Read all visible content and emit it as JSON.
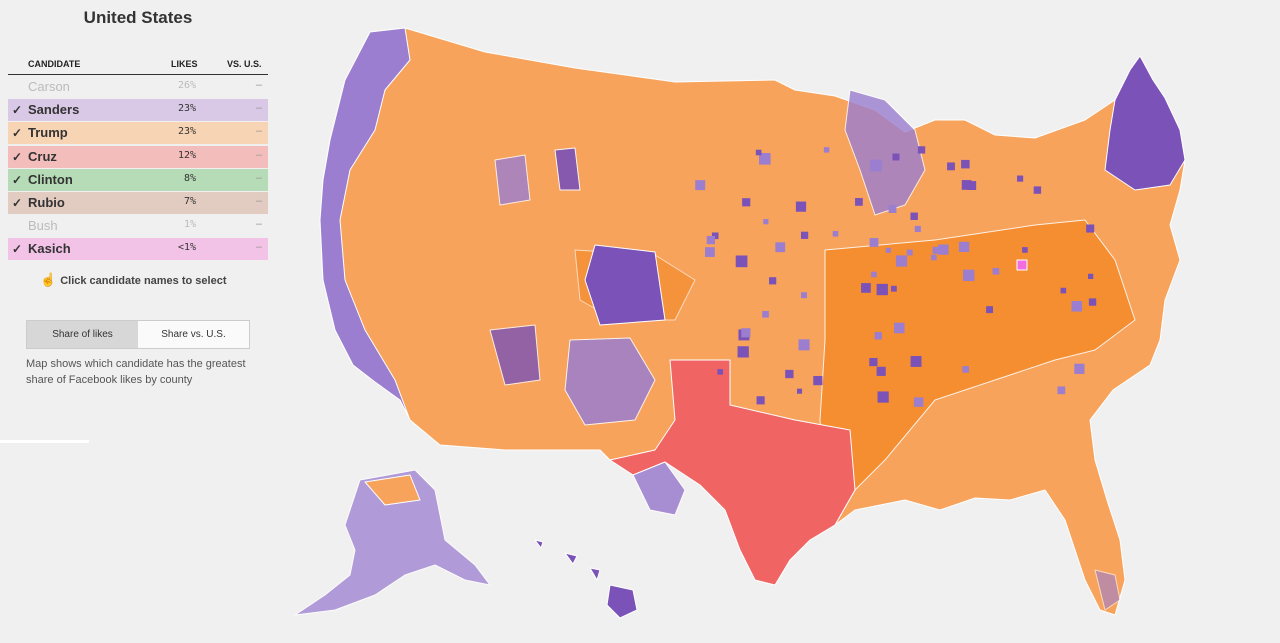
{
  "title": "United States",
  "table": {
    "headers": {
      "candidate": "CANDIDATE",
      "likes": "LIKES",
      "vs": "VS. U.S."
    },
    "rows": [
      {
        "name": "Carson",
        "likes": "26%",
        "vs": "–",
        "selected": false,
        "check": "",
        "color": "#f0f0f0"
      },
      {
        "name": "Sanders",
        "likes": "23%",
        "vs": "–",
        "selected": true,
        "check": "✓",
        "color": "#d9c9e6"
      },
      {
        "name": "Trump",
        "likes": "23%",
        "vs": "–",
        "selected": true,
        "check": "✓",
        "color": "#f7d4b4"
      },
      {
        "name": "Cruz",
        "likes": "12%",
        "vs": "–",
        "selected": true,
        "check": "✓",
        "color": "#f3bdbb"
      },
      {
        "name": "Clinton",
        "likes": "8%",
        "vs": "–",
        "selected": true,
        "check": "✓",
        "color": "#b5dcb6"
      },
      {
        "name": "Rubio",
        "likes": "7%",
        "vs": "–",
        "selected": true,
        "check": "✓",
        "color": "#e2cbc0"
      },
      {
        "name": "Bush",
        "likes": "1%",
        "vs": "–",
        "selected": false,
        "check": "",
        "color": "#f0f0f0"
      },
      {
        "name": "Kasich",
        "likes": "<1%",
        "vs": "–",
        "selected": true,
        "check": "✓",
        "color": "#f2c3e6"
      }
    ]
  },
  "hint": "Click candidate names to select",
  "toggle": {
    "active": "Share of likes",
    "inactive": "Share vs. U.S."
  },
  "description": "Map shows which candidate has the greatest share of Facebook likes by county",
  "map_colors": {
    "trump": "#f7a35c",
    "trump_dark": "#f58a2a",
    "sanders": "#9b7ecf",
    "sanders_dark": "#7a52b8",
    "cruz": "#f06463",
    "kasich": "#f06ee0",
    "border": "#ffffff"
  }
}
